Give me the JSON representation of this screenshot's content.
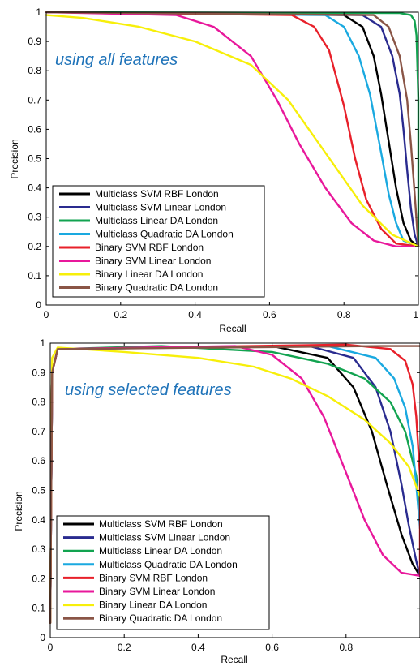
{
  "colors": {
    "black": "#000000",
    "navy": "#2a2b8f",
    "green": "#12a350",
    "cyan": "#1aa9e0",
    "red": "#e8202a",
    "magenta": "#e8189b",
    "yellow": "#f7ef0a",
    "brown": "#8a5546",
    "annotation": "#1f73b9"
  },
  "chart_data": [
    {
      "type": "line",
      "title": "",
      "annotation": "using all features",
      "xlabel": "Recall",
      "ylabel": "Precision",
      "xlim": [
        0,
        1
      ],
      "ylim": [
        0,
        1
      ],
      "xticks": [
        "0",
        "0.2",
        "0.4",
        "0.6",
        "0.8",
        "1"
      ],
      "yticks": [
        "0",
        "0.1",
        "0.2",
        "0.3",
        "0.4",
        "0.5",
        "0.6",
        "0.7",
        "0.8",
        "0.9",
        "1"
      ],
      "grid": false,
      "legend_position": "bottom-left",
      "series": [
        {
          "name": "Multiclass SVM RBF London",
          "color": "#000000",
          "x": [
            0,
            0.8,
            0.85,
            0.88,
            0.9,
            0.92,
            0.94,
            0.96,
            0.98,
            1.0
          ],
          "y": [
            1,
            0.99,
            0.95,
            0.85,
            0.72,
            0.56,
            0.4,
            0.28,
            0.22,
            0.2
          ]
        },
        {
          "name": "Multiclass SVM Linear London",
          "color": "#2a2b8f",
          "x": [
            0,
            0.85,
            0.9,
            0.93,
            0.95,
            0.96,
            0.97,
            0.98,
            0.99,
            1.0
          ],
          "y": [
            1,
            0.99,
            0.95,
            0.85,
            0.72,
            0.6,
            0.46,
            0.33,
            0.24,
            0.2
          ]
        },
        {
          "name": "Multiclass Linear DA London",
          "color": "#12a350",
          "x": [
            0,
            0.95,
            0.98,
            0.99,
            0.995,
            1.0,
            1.0,
            1.0
          ],
          "y": [
            1,
            0.997,
            0.99,
            0.97,
            0.92,
            0.7,
            0.4,
            0.2
          ]
        },
        {
          "name": "Multiclass Quadratic DA London",
          "color": "#1aa9e0",
          "x": [
            0,
            0.75,
            0.8,
            0.84,
            0.87,
            0.9,
            0.92,
            0.94,
            0.96,
            1.0
          ],
          "y": [
            1,
            0.99,
            0.95,
            0.85,
            0.72,
            0.52,
            0.38,
            0.28,
            0.22,
            0.2
          ]
        },
        {
          "name": "Binary SVM RBF London",
          "color": "#e8202a",
          "x": [
            0,
            0.66,
            0.72,
            0.76,
            0.8,
            0.83,
            0.86,
            0.9,
            0.94,
            1.0
          ],
          "y": [
            1,
            0.99,
            0.95,
            0.87,
            0.68,
            0.5,
            0.36,
            0.26,
            0.21,
            0.2
          ]
        },
        {
          "name": "Binary SVM Linear London",
          "color": "#e8189b",
          "x": [
            0,
            0.35,
            0.45,
            0.55,
            0.62,
            0.68,
            0.75,
            0.82,
            0.88,
            0.94,
            1.0
          ],
          "y": [
            1,
            0.99,
            0.95,
            0.85,
            0.7,
            0.55,
            0.4,
            0.28,
            0.22,
            0.2,
            0.2
          ]
        },
        {
          "name": "Binary Linear DA London",
          "color": "#f7ef0a",
          "x": [
            0,
            0.1,
            0.25,
            0.4,
            0.55,
            0.65,
            0.75,
            0.85,
            0.93,
            1.0
          ],
          "y": [
            0.99,
            0.98,
            0.95,
            0.9,
            0.82,
            0.7,
            0.52,
            0.34,
            0.24,
            0.2
          ]
        },
        {
          "name": "Binary Quadratic DA London",
          "color": "#8a5546",
          "x": [
            0,
            0.88,
            0.92,
            0.95,
            0.97,
            0.98,
            0.99,
            1.0
          ],
          "y": [
            1,
            0.99,
            0.95,
            0.85,
            0.7,
            0.55,
            0.38,
            0.2
          ]
        }
      ]
    },
    {
      "type": "line",
      "title": "",
      "annotation": "using selected features",
      "xlabel": "Recall",
      "ylabel": "Precision",
      "xlim": [
        0,
        1
      ],
      "ylim": [
        0,
        1
      ],
      "xticks": [
        "0",
        "0.2",
        "0.4",
        "0.6",
        "0.8"
      ],
      "yticks": [
        "0",
        "0.1",
        "0.2",
        "0.3",
        "0.4",
        "0.5",
        "0.6",
        "0.7",
        "0.8",
        "0.9",
        "1"
      ],
      "grid": false,
      "legend_position": "bottom-left",
      "series": [
        {
          "name": "Multiclass SVM RBF London",
          "color": "#000000",
          "x": [
            0,
            0.005,
            0.02,
            0.6,
            0.75,
            0.82,
            0.87,
            0.91,
            0.95,
            0.98,
            1.0
          ],
          "y": [
            0.05,
            0.9,
            0.98,
            0.99,
            0.95,
            0.85,
            0.7,
            0.52,
            0.35,
            0.25,
            0.21
          ]
        },
        {
          "name": "Multiclass SVM Linear London",
          "color": "#2a2b8f",
          "x": [
            0,
            0.005,
            0.02,
            0.7,
            0.82,
            0.88,
            0.92,
            0.95,
            0.97,
            0.99,
            1.0
          ],
          "y": [
            0.05,
            0.9,
            0.98,
            0.99,
            0.95,
            0.85,
            0.7,
            0.52,
            0.38,
            0.26,
            0.21
          ]
        },
        {
          "name": "Multiclass Linear DA London",
          "color": "#12a350",
          "x": [
            0,
            0.005,
            0.02,
            0.3,
            0.6,
            0.75,
            0.85,
            0.92,
            0.96,
            0.99,
            1.0
          ],
          "y": [
            0.05,
            0.9,
            0.98,
            0.99,
            0.97,
            0.93,
            0.88,
            0.8,
            0.7,
            0.55,
            0.4
          ]
        },
        {
          "name": "Multiclass Quadratic DA London",
          "color": "#1aa9e0",
          "x": [
            0,
            0.005,
            0.02,
            0.75,
            0.88,
            0.93,
            0.96,
            0.98,
            0.99,
            1.0
          ],
          "y": [
            0.05,
            0.9,
            0.98,
            0.99,
            0.95,
            0.88,
            0.78,
            0.65,
            0.52,
            0.37
          ]
        },
        {
          "name": "Binary SVM RBF London",
          "color": "#e8202a",
          "x": [
            0,
            0.005,
            0.02,
            0.8,
            0.92,
            0.96,
            0.98,
            0.99,
            1.0,
            1.0
          ],
          "y": [
            0.05,
            0.9,
            0.98,
            0.995,
            0.98,
            0.94,
            0.86,
            0.75,
            0.55,
            0.21
          ]
        },
        {
          "name": "Binary SVM Linear London",
          "color": "#e8189b",
          "x": [
            0,
            0.005,
            0.02,
            0.5,
            0.6,
            0.68,
            0.74,
            0.8,
            0.85,
            0.9,
            0.95,
            1.0
          ],
          "y": [
            0.05,
            0.9,
            0.98,
            0.99,
            0.96,
            0.88,
            0.75,
            0.56,
            0.4,
            0.28,
            0.22,
            0.21
          ]
        },
        {
          "name": "Binary Linear DA London",
          "color": "#f7ef0a",
          "x": [
            0,
            0.005,
            0.02,
            0.2,
            0.4,
            0.55,
            0.65,
            0.75,
            0.85,
            0.92,
            0.97,
            1.0
          ],
          "y": [
            0.05,
            0.95,
            0.985,
            0.97,
            0.95,
            0.92,
            0.88,
            0.82,
            0.74,
            0.66,
            0.58,
            0.48
          ]
        },
        {
          "name": "Binary Quadratic DA London",
          "color": "#8a5546",
          "x": [
            0,
            0.005,
            0.02,
            0.9,
            1.0
          ],
          "y": [
            0.05,
            0.9,
            0.98,
            0.99,
            0.99
          ]
        }
      ]
    }
  ]
}
